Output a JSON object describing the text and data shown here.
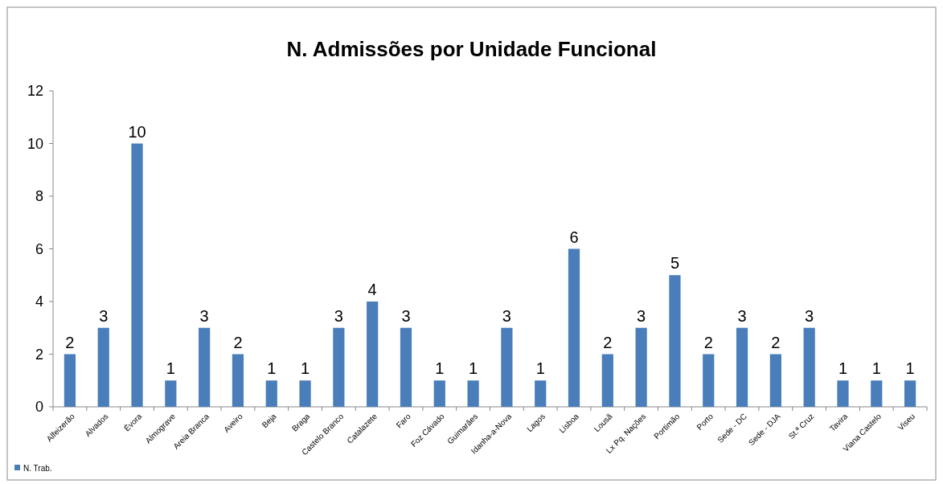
{
  "chart_data": {
    "type": "bar",
    "title": "N. Admissões por  Unidade Funcional",
    "categories": [
      "Alfeizerão",
      "Alvados",
      "Évora",
      "Almograve",
      "Areia Branca",
      "Aveiro",
      "Beja",
      "Braga",
      "Castelo Branco",
      "Catalazete",
      "Faro",
      "Foz Cávado",
      "Guimarães",
      "Idanha-a-Nova",
      "Lagos",
      "Lisboa",
      "Lousã",
      "Lx Pq. Nações",
      "Portimão",
      "Porto",
      "Sede - DC",
      "Sede - DJA",
      "St.ª Cruz",
      "Tavira",
      "Viana Castelo",
      "Viseu"
    ],
    "series": [
      {
        "name": "N. Trab.",
        "color": "#4a7ebb",
        "values": [
          2,
          3,
          10,
          1,
          3,
          2,
          1,
          1,
          3,
          4,
          3,
          1,
          1,
          3,
          1,
          6,
          2,
          3,
          5,
          2,
          3,
          2,
          3,
          1,
          1,
          1
        ]
      }
    ],
    "ylim": [
      0,
      12
    ],
    "yticks": [
      0,
      2,
      4,
      6,
      8,
      10,
      12
    ],
    "data_labels": true,
    "legend": "bottom left"
  }
}
